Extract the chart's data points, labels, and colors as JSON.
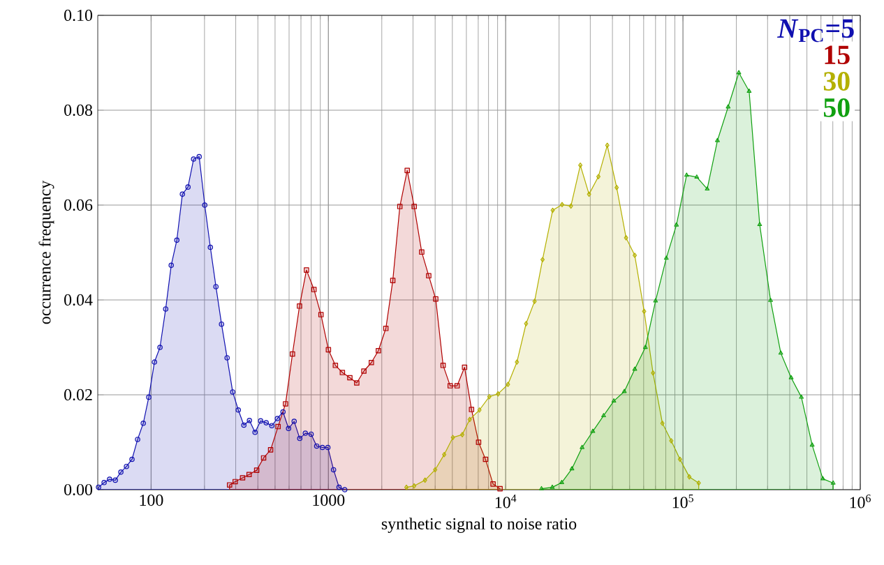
{
  "chart_data": {
    "type": "area",
    "xlabel": "synthetic signal to noise ratio",
    "ylabel": "occurrence frequency",
    "log": "x",
    "grid": true,
    "legend": "top right",
    "xlim": [
      50,
      1000000
    ],
    "ylim": [
      0,
      0.1
    ],
    "xticks": [
      100,
      1000,
      {
        "value": 10000,
        "label": "10$^{4}$"
      },
      {
        "value": 100000,
        "label": "10$^{5}$"
      },
      {
        "value": 1000000,
        "label": "10$^{6}$"
      }
    ],
    "yticks": [
      {
        "value": 0,
        "label": "0.00"
      },
      {
        "value": 0.02,
        "label": "0.02"
      },
      {
        "value": 0.04,
        "label": "0.04"
      },
      {
        "value": 0.06,
        "label": "0.06"
      },
      {
        "value": 0.08,
        "label": "0.08"
      },
      {
        "value": 0.1,
        "label": "0.10"
      }
    ],
    "series": [
      {
        "name": "*N*$_{PC}$=5",
        "color": "#1010b0",
        "marker": "circle",
        "x": [
          50.5,
          54.3,
          58.3,
          62.8,
          67.5,
          72.6,
          78.0,
          83.9,
          90.3,
          97.0,
          104.4,
          112.2,
          120.8,
          129.8,
          139.6,
          150.1,
          161.4,
          173.6,
          186.6,
          200.7,
          215.8,
          232.0,
          249.5,
          268.3,
          288.5,
          310.2,
          333.5,
          358.6,
          385.6,
          414.7,
          445.8,
          479.4,
          515.5,
          554.3,
          596.0,
          640.9,
          689.2,
          741.1,
          799.0,
          858.9,
          924.8,
          993,
          1069,
          1148,
          1236
        ],
        "values": [
          0.0005,
          0.0015,
          0.0022,
          0.002,
          0.0037,
          0.0049,
          0.0064,
          0.0106,
          0.014,
          0.0195,
          0.0269,
          0.03,
          0.0381,
          0.0473,
          0.0526,
          0.0623,
          0.0638,
          0.0697,
          0.0702,
          0.06,
          0.0511,
          0.0428,
          0.0349,
          0.0278,
          0.0206,
          0.0168,
          0.0136,
          0.0146,
          0.0121,
          0.0145,
          0.0141,
          0.0135,
          0.015,
          0.0164,
          0.0129,
          0.0144,
          0.0108,
          0.0119,
          0.0117,
          0.0092,
          0.0089,
          0.0089,
          0.0042,
          0.0005,
          0
        ]
      },
      {
        "name": "15",
        "color": "#b00000",
        "marker": "square",
        "x": [
          277,
          298,
          328,
          357,
          394,
          431,
          472,
          520,
          573,
          627,
          687,
          752,
          829,
          908,
          1000,
          1095,
          1199,
          1321,
          1445,
          1585,
          1747,
          1914,
          2109,
          2308,
          2529,
          2783,
          3047,
          3360,
          3680,
          4030,
          4436,
          4864,
          5321,
          5861,
          6415,
          7031,
          7695,
          8487,
          9290
        ],
        "values": [
          0.001,
          0.0017,
          0.0025,
          0.0032,
          0.0041,
          0.0067,
          0.0084,
          0.0133,
          0.0181,
          0.0286,
          0.0387,
          0.0463,
          0.0422,
          0.0369,
          0.0295,
          0.0262,
          0.0247,
          0.0236,
          0.0225,
          0.025,
          0.0268,
          0.0293,
          0.034,
          0.0441,
          0.0597,
          0.0673,
          0.0597,
          0.0501,
          0.0451,
          0.0402,
          0.0262,
          0.0219,
          0.0219,
          0.0258,
          0.0169,
          0.01,
          0.0064,
          0.0012,
          0.0002
        ]
      },
      {
        "name": "30",
        "color": "#b4b000",
        "marker": "diamond",
        "x": [
          2754,
          3047,
          3508,
          4000,
          4498,
          5035,
          5689,
          6266,
          7113,
          8084,
          9060,
          10300,
          11570,
          13030,
          14550,
          16140,
          18410,
          20800,
          23330,
          26360,
          29520,
          33340,
          37410,
          42270,
          47750,
          53460,
          60400,
          67760,
          76560,
          85910,
          96160,
          108600,
          122700
        ],
        "values": [
          0.0005,
          0.0008,
          0.002,
          0.0042,
          0.0074,
          0.011,
          0.0116,
          0.0148,
          0.0168,
          0.0196,
          0.0202,
          0.0222,
          0.0269,
          0.035,
          0.0397,
          0.0485,
          0.0589,
          0.0601,
          0.0598,
          0.0684,
          0.0623,
          0.066,
          0.0726,
          0.0637,
          0.0531,
          0.0494,
          0.0376,
          0.0246,
          0.014,
          0.0103,
          0.0064,
          0.0027,
          0.0014
        ]
      },
      {
        "name": "50",
        "color": "#10a010",
        "marker": "triangle",
        "x": [
          15920,
          18320,
          20700,
          23630,
          26970,
          31010,
          35670,
          40740,
          46680,
          53460,
          61350,
          70030,
          80500,
          91820,
          104800,
          119600,
          137000,
          156400,
          179800,
          206500,
          236100,
          270800,
          311900,
          356200,
          407500,
          465500,
          535300,
          614900,
          703100
        ],
        "values": [
          0.0002,
          0.0005,
          0.0015,
          0.0044,
          0.0089,
          0.0123,
          0.0156,
          0.0187,
          0.0207,
          0.0254,
          0.03,
          0.0398,
          0.0488,
          0.0558,
          0.0663,
          0.0659,
          0.0634,
          0.0736,
          0.0807,
          0.0879,
          0.084,
          0.0559,
          0.0399,
          0.0288,
          0.0236,
          0.0195,
          0.0094,
          0.0023,
          0.0014
        ]
      }
    ]
  }
}
